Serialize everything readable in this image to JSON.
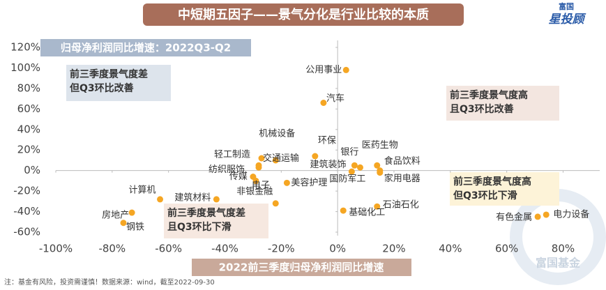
{
  "chart_data": {
    "type": "scatter",
    "title": "中短期五因子——景气分化是行业比较的本质",
    "y_label": "归母净利润同比增速：2022Q3-Q2",
    "x_label": "2022前三季度归母净利润同比增速",
    "annotations": [
      [
        "前三季度景气度差",
        "但Q3环比改善"
      ],
      [
        "前三季度景气度高",
        "且Q3环比改善"
      ],
      [
        "前三季度景气度高",
        "但Q3环比下滑"
      ],
      [
        "前三季度景气度差",
        "且Q3环比下滑"
      ]
    ],
    "footnote": "注：基金有风险，投资需谨慎！数据来源：wind，截至2022-09-30",
    "logo": [
      "富国",
      "星投顾"
    ],
    "watermark": "富国基金",
    "color": "#f5a623",
    "point_labels": [
      "公用事业",
      "汽车",
      "机械设备",
      "轻工制造",
      "交通运输",
      "纺织服饰",
      "传媒",
      "电子",
      "非银金融",
      "美容护理",
      "环保",
      "银行",
      "建筑装饰",
      "国防军工",
      "医药生物",
      "食品饮料",
      "家用电器",
      "石油石化",
      "基础化工",
      "计算机",
      "建筑材料",
      "房地产",
      "钢铁",
      "有色金属",
      "电力设备"
    ],
    "x": [
      3,
      -5,
      -22,
      -27,
      -28,
      -28,
      -30,
      -29,
      -22,
      -18,
      -8,
      6,
      8,
      5,
      14,
      15,
      15,
      14,
      2,
      -63,
      -43,
      -73,
      -76,
      71,
      74
    ],
    "values": [
      98,
      66,
      10,
      12,
      5,
      3,
      -6,
      -10,
      -32,
      -12,
      14,
      5,
      3,
      -1,
      5,
      0,
      -2,
      -35,
      -39,
      -28,
      -28,
      -41,
      -51,
      -45,
      -43
    ],
    "xlim": [
      -100,
      93
    ],
    "ylim": [
      -60,
      120
    ],
    "xticks": [
      {
        "value": -100,
        "label": "-100%"
      },
      {
        "value": -80,
        "label": "-80%"
      },
      {
        "value": -60,
        "label": "-60%"
      },
      {
        "value": -40,
        "label": "-40%"
      },
      {
        "value": -20,
        "label": "-20%"
      },
      {
        "value": 0,
        "label": "0%"
      },
      {
        "value": 20,
        "label": "20%"
      },
      {
        "value": 40,
        "label": "40%"
      },
      {
        "value": 60,
        "label": "60%"
      },
      {
        "value": 80,
        "label": "80%"
      }
    ],
    "yticks": [
      {
        "value": -60,
        "label": "-60%"
      },
      {
        "value": -40,
        "label": "-40%"
      },
      {
        "value": -20,
        "label": "-20%"
      },
      {
        "value": 0,
        "label": "0%"
      },
      {
        "value": 20,
        "label": "20%"
      },
      {
        "value": 40,
        "label": "40%"
      },
      {
        "value": 60,
        "label": "60%"
      },
      {
        "value": 80,
        "label": "80%"
      },
      {
        "value": 100,
        "label": "100%"
      },
      {
        "value": 120,
        "label": "120%"
      }
    ]
  }
}
